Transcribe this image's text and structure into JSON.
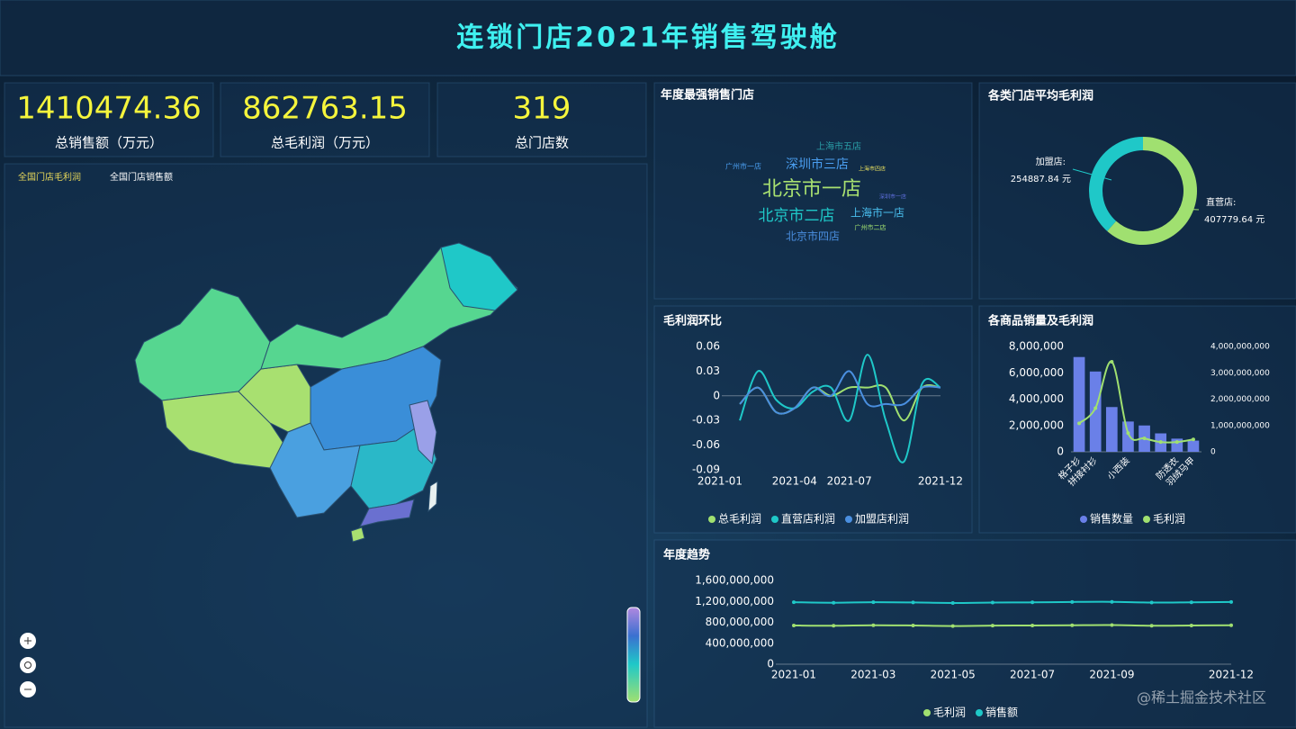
{
  "title": "连锁门店2021年销售驾驶舱",
  "kpis": [
    {
      "value": 1410474.36,
      "label": "总销售额（万元）"
    },
    {
      "value": 862763.15,
      "label": "总毛利润（万元）"
    },
    {
      "value": 319,
      "label": "总门店数"
    }
  ],
  "map": {
    "legend": [
      "全国门店毛利润",
      "全国门店销售额"
    ]
  },
  "wordcloud": {
    "title": "年度最强销售门店",
    "words": [
      "北京市一店",
      "北京市二店",
      "深圳市三店",
      "上海市一店",
      "北京市四店",
      "上海市五店",
      "广州市一店",
      "上海市四店",
      "深圳市一店",
      "广州市二店"
    ]
  },
  "chart_data": [
    {
      "type": "pie",
      "title": "各类门店平均毛利润",
      "categories": [
        "加盟店:",
        "直营店:"
      ],
      "values": [
        254887.84,
        407779.64
      ],
      "value_labels": [
        "254887.84 元",
        "407779.64 元"
      ],
      "colors": [
        "#1fc8c8",
        "#a0e070"
      ]
    },
    {
      "type": "line",
      "title": "毛利润环比",
      "categories": [
        "2021-01",
        null,
        null,
        "2021-04",
        null,
        null,
        "2021-07",
        null,
        null,
        null,
        null,
        "2021-12"
      ],
      "series": [
        {
          "name": "总毛利润",
          "color": "#a0e070",
          "values": [
            -0.01,
            0.01,
            -0.02,
            -0.015,
            0.01,
            0.0,
            0.01,
            0.01,
            0.01,
            -0.03,
            0.01,
            0.01
          ]
        },
        {
          "name": "直营店利润",
          "color": "#1fc8c8",
          "values": [
            -0.03,
            0.03,
            -0.005,
            -0.015,
            0.005,
            0.01,
            -0.03,
            0.05,
            -0.03,
            -0.08,
            0.015,
            0.01
          ]
        },
        {
          "name": "加盟店利润",
          "color": "#4a8fe0",
          "values": [
            -0.01,
            0.01,
            -0.02,
            -0.015,
            0.01,
            0.0,
            0.03,
            -0.01,
            -0.01,
            -0.01,
            0.01,
            0.01
          ]
        }
      ],
      "ylim": [
        -0.09,
        0.06
      ],
      "yticks": [
        -0.09,
        -0.06,
        -0.03,
        0,
        0.03,
        0.06
      ]
    },
    {
      "type": "bar",
      "title": "各商品销量及毛利润",
      "categories": [
        "格子衫",
        "拼接衬衫",
        null,
        "小西装",
        null,
        null,
        "防透衣",
        "羽绒马甲"
      ],
      "series": [
        {
          "name": "销售数量",
          "type": "bar",
          "color": "#6a80e8",
          "values": [
            7200000,
            6100000,
            3400000,
            2300000,
            2000000,
            1400000,
            1000000,
            850000
          ]
        },
        {
          "name": "毛利润",
          "type": "line",
          "axis": "y2",
          "color": "#a0e070",
          "values": [
            1080000000,
            1660000000,
            3420000000,
            710000000,
            510000000,
            370000000,
            370000000,
            470000000
          ]
        }
      ],
      "ylim": [
        0,
        8000000
      ],
      "yticks": [
        0,
        {
          "value": 2000000,
          "label": "2,000,000"
        },
        {
          "value": 4000000,
          "label": "4,000,000"
        },
        {
          "value": 6000000,
          "label": "6,000,000"
        },
        {
          "value": 8000000,
          "label": "8,000,000"
        }
      ],
      "y2lim": [
        0,
        4000000000
      ],
      "y2ticks": [
        0,
        {
          "value": 1000000000,
          "label": "1,000,000,000"
        },
        {
          "value": 2000000000,
          "label": "2,000,000,000"
        },
        {
          "value": 3000000000,
          "label": "3,000,000,000"
        },
        {
          "value": 4000000000,
          "label": "4,000,000,000"
        }
      ]
    },
    {
      "type": "line",
      "title": "年度趋势",
      "symbols": true,
      "categories": [
        "2021-01",
        null,
        "2021-03",
        null,
        "2021-05",
        null,
        "2021-07",
        null,
        "2021-09",
        null,
        null,
        "2021-12"
      ],
      "series": [
        {
          "name": "毛利润",
          "color": "#a0e070",
          "values": [
            740000000,
            735000000,
            745000000,
            740000000,
            730000000,
            738000000,
            740000000,
            745000000,
            748000000,
            735000000,
            740000000,
            745000000
          ]
        },
        {
          "name": "销售额",
          "color": "#1fc8c8",
          "values": [
            1185000000,
            1175000000,
            1185000000,
            1180000000,
            1170000000,
            1178000000,
            1182000000,
            1190000000,
            1192000000,
            1178000000,
            1183000000,
            1190000000
          ]
        }
      ],
      "ylim": [
        0,
        1600000000
      ],
      "yticks": [
        0,
        {
          "value": 400000000,
          "label": "400,000,000"
        },
        {
          "value": 800000000,
          "label": "800,000,000"
        },
        {
          "value": 1200000000,
          "label": "1,200,000,000"
        },
        {
          "value": 1600000000,
          "label": "1,600,000,000"
        }
      ]
    }
  ],
  "watermark": "@稀土掘金技术社区"
}
